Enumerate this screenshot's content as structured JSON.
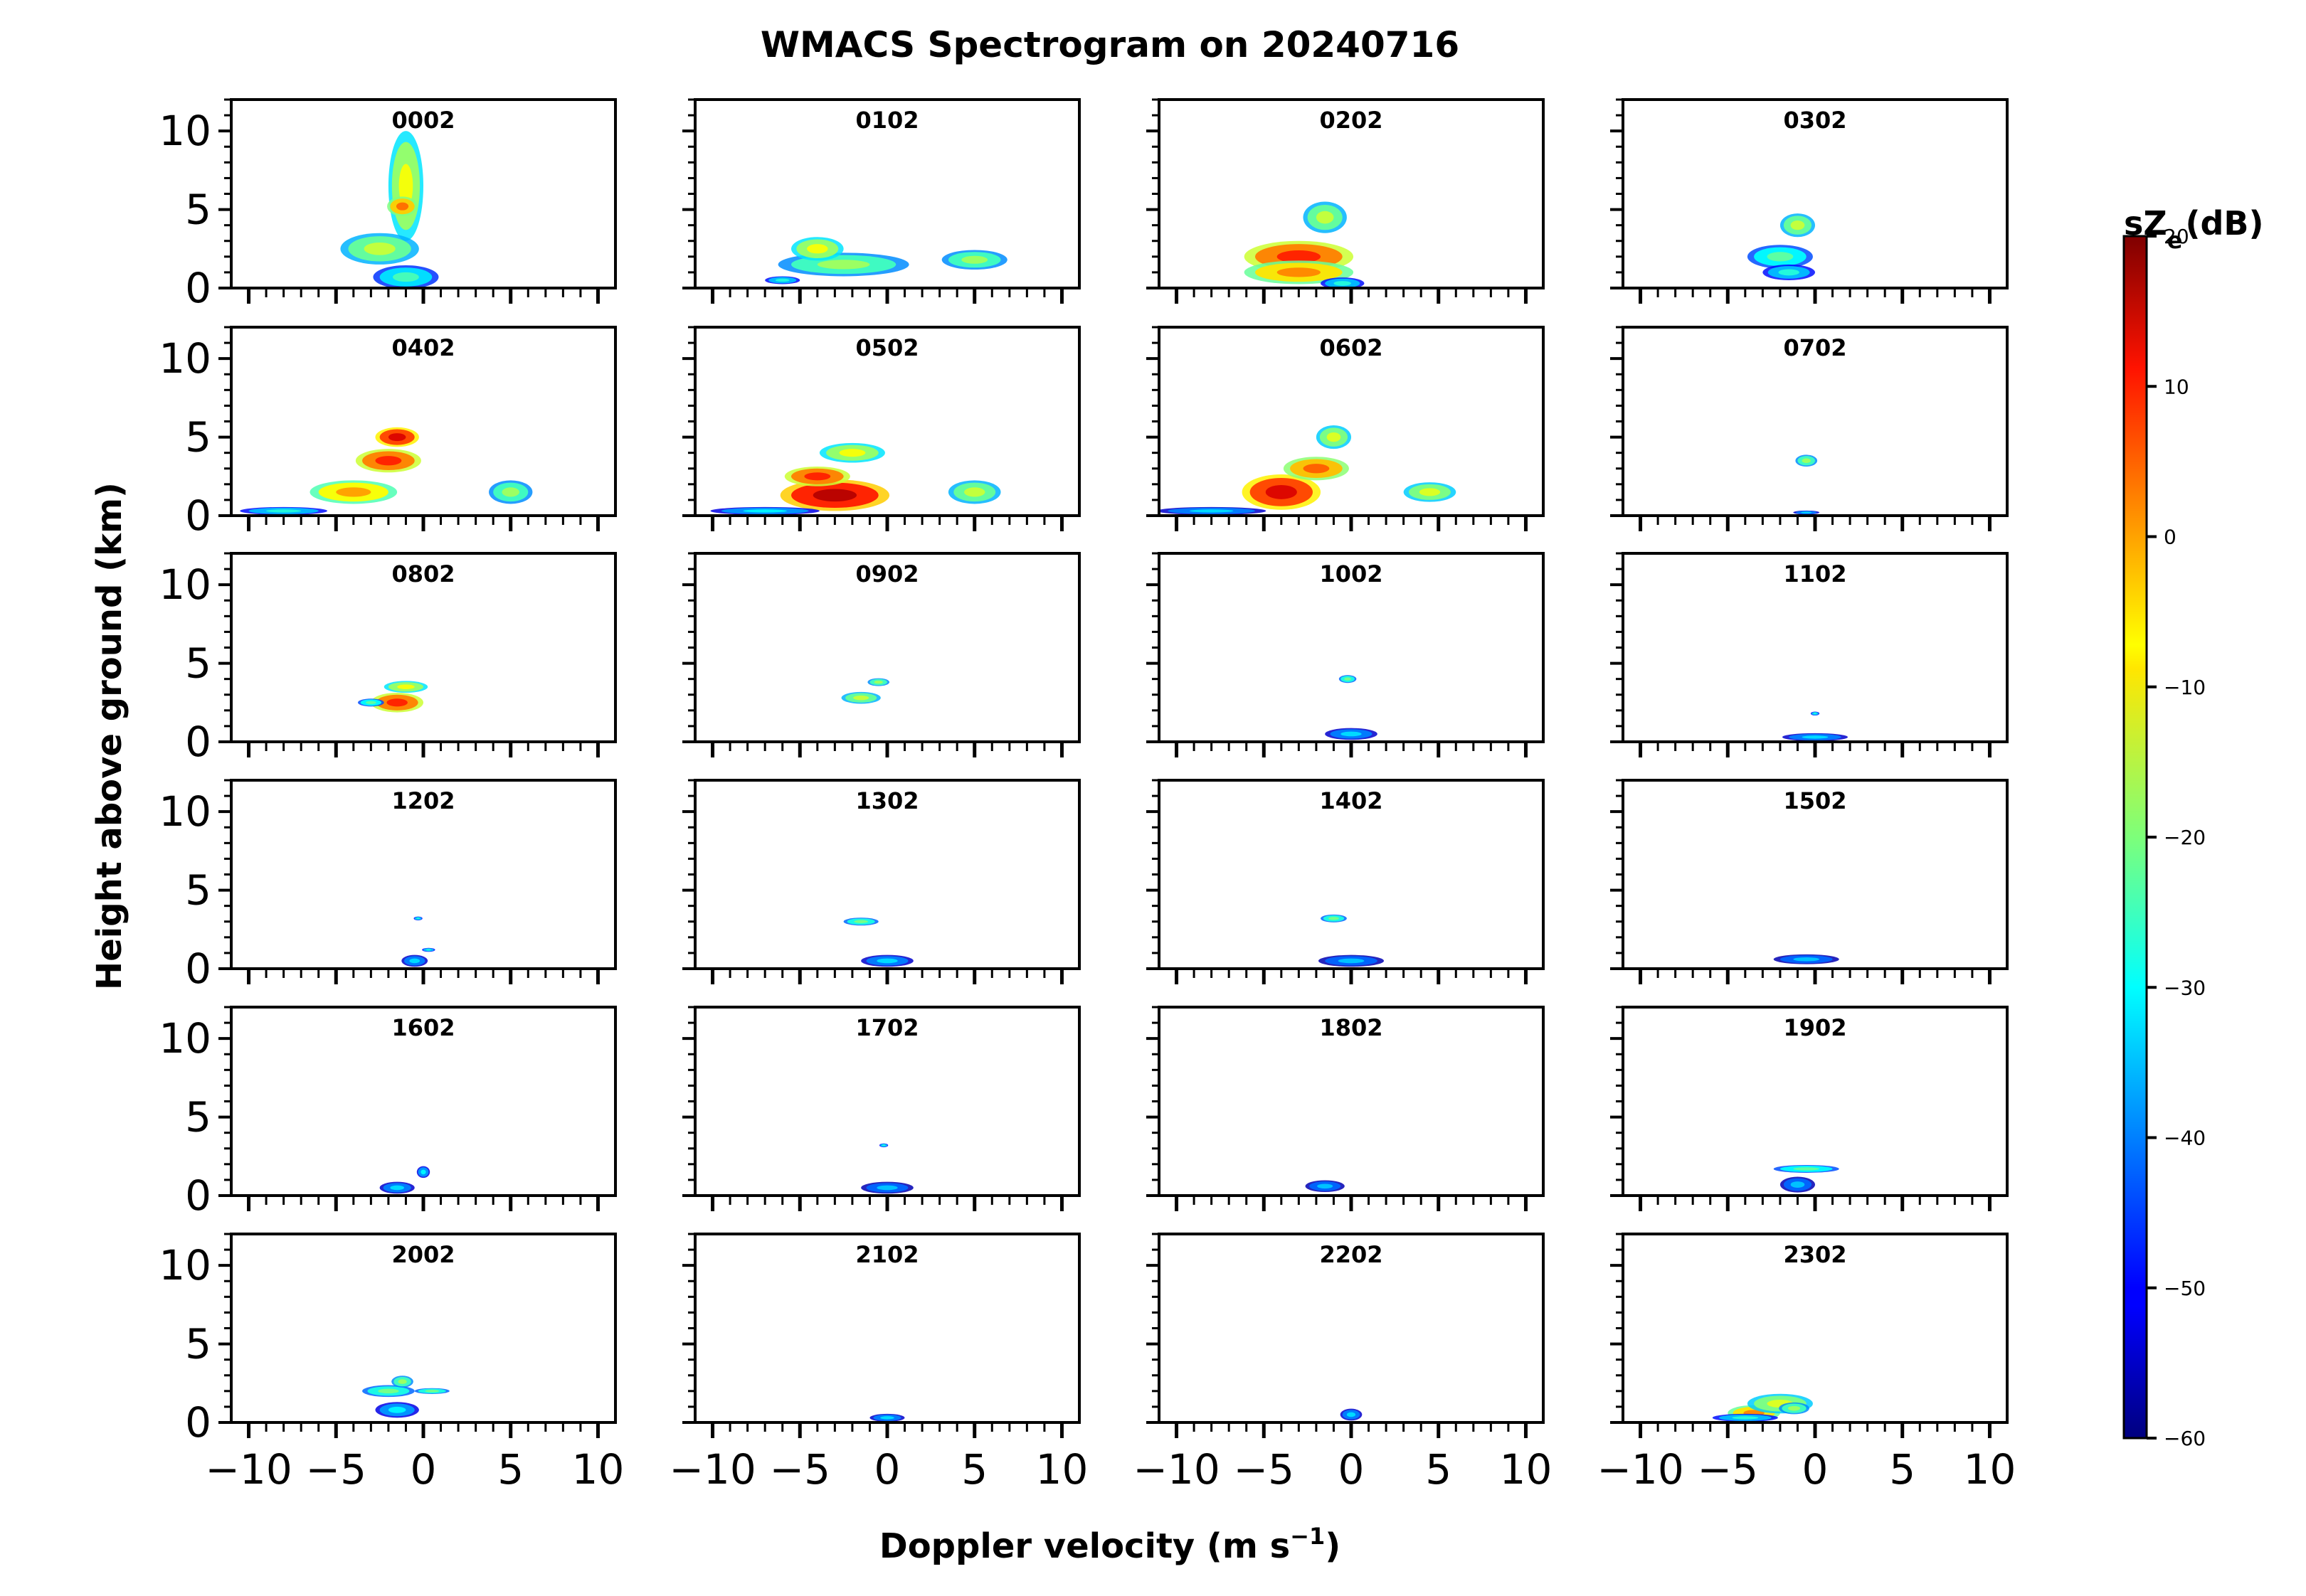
{
  "chart_data": {
    "type": "heatmap",
    "title": "WMACS Spectrogram on 20240716",
    "xlabel": "Doppler velocity (m s",
    "xlabel_sup": "−1",
    "xlabel_end": ")",
    "ylabel": "Height above ground (km)",
    "xlim": [
      -11,
      11
    ],
    "ylim": [
      0,
      12
    ],
    "xticks": [
      -10,
      -5,
      0,
      5,
      10
    ],
    "xtick_labels": [
      "−10",
      "−5",
      "0",
      "5",
      "10"
    ],
    "yticks": [
      0,
      5,
      10
    ],
    "ytick_labels": [
      "0",
      "5",
      "10"
    ],
    "grid": false,
    "colorbar": {
      "label": "sZ_e (dB)",
      "label_main": "sZ",
      "label_sub": "e",
      "label_unit": "(dB)",
      "range": [
        -60,
        20
      ],
      "ticks": [
        -60,
        -50,
        -40,
        -30,
        -20,
        -10,
        0,
        10,
        20
      ],
      "tick_labels": [
        "−60",
        "−50",
        "−40",
        "−30",
        "−20",
        "−10",
        "0",
        "10",
        "20"
      ],
      "colormap": "jet"
    },
    "panels": [
      {
        "label": "0002",
        "blobs": [
          [
            -1,
            6.5,
            0.8,
            2.8,
            -18
          ],
          [
            -2.5,
            2.5,
            1.8,
            0.8,
            -22
          ],
          [
            -1,
            0.7,
            1.5,
            0.6,
            -32
          ],
          [
            -1.2,
            5.2,
            0.7,
            0.5,
            -6
          ]
        ]
      },
      {
        "label": "0102",
        "blobs": [
          [
            -2.5,
            1.5,
            3,
            0.6,
            -25
          ],
          [
            -4,
            2.5,
            1.2,
            0.6,
            -18
          ],
          [
            5,
            1.8,
            1.5,
            0.5,
            -25
          ],
          [
            -6,
            0.5,
            0.8,
            0.2,
            -35
          ]
        ]
      },
      {
        "label": "0202",
        "blobs": [
          [
            -3,
            2,
            2.5,
            0.8,
            0
          ],
          [
            -3,
            1,
            2.5,
            0.6,
            -8
          ],
          [
            -1.5,
            4.5,
            1,
            0.8,
            -22
          ],
          [
            -0.5,
            0.3,
            1,
            0.3,
            -35
          ]
        ]
      },
      {
        "label": "0302",
        "blobs": [
          [
            -2,
            2,
            1.5,
            0.6,
            -30
          ],
          [
            -1,
            4,
            0.8,
            0.6,
            -22
          ],
          [
            -1.5,
            1,
            1.2,
            0.4,
            -35
          ]
        ]
      },
      {
        "label": "0402",
        "blobs": [
          [
            -4,
            1.5,
            2,
            0.6,
            -10
          ],
          [
            -2,
            3.5,
            1.5,
            0.6,
            0
          ],
          [
            -1.5,
            5,
            1,
            0.5,
            5
          ],
          [
            5,
            1.5,
            1,
            0.6,
            -25
          ],
          [
            -8,
            0.3,
            2,
            0.2,
            -35
          ]
        ]
      },
      {
        "label": "0502",
        "blobs": [
          [
            -3,
            1.3,
            2.5,
            0.8,
            8
          ],
          [
            -4,
            2.5,
            1.5,
            0.5,
            0
          ],
          [
            -2,
            4,
            1.5,
            0.5,
            -18
          ],
          [
            5,
            1.5,
            1.2,
            0.6,
            -22
          ],
          [
            -7,
            0.3,
            2.5,
            0.2,
            -38
          ]
        ]
      },
      {
        "label": "0602",
        "blobs": [
          [
            -4,
            1.5,
            1.8,
            0.9,
            5
          ],
          [
            -2,
            3,
            1.5,
            0.6,
            -5
          ],
          [
            -1,
            5,
            0.8,
            0.6,
            -20
          ],
          [
            4.5,
            1.5,
            1.2,
            0.5,
            -20
          ],
          [
            -8,
            0.3,
            2.5,
            0.2,
            -40
          ]
        ]
      },
      {
        "label": "0702",
        "blobs": [
          [
            -0.5,
            3.5,
            0.5,
            0.3,
            -25
          ],
          [
            -0.5,
            0.2,
            0.6,
            0.1,
            -40
          ]
        ]
      },
      {
        "label": "0802",
        "blobs": [
          [
            -1.5,
            2.5,
            1.2,
            0.5,
            0
          ],
          [
            -1,
            3.5,
            1,
            0.3,
            -18
          ],
          [
            -3,
            2.5,
            0.6,
            0.2,
            -30
          ]
        ]
      },
      {
        "label": "0902",
        "blobs": [
          [
            -1.5,
            2.8,
            0.9,
            0.3,
            -22
          ],
          [
            -0.5,
            3.8,
            0.5,
            0.2,
            -25
          ]
        ]
      },
      {
        "label": "1002",
        "blobs": [
          [
            0,
            0.5,
            1.2,
            0.3,
            -40
          ],
          [
            -0.2,
            4,
            0.4,
            0.2,
            -28
          ]
        ]
      },
      {
        "label": "1102",
        "blobs": [
          [
            0,
            0.3,
            1.5,
            0.2,
            -40
          ],
          [
            0,
            1.8,
            0.2,
            0.1,
            -35
          ]
        ]
      },
      {
        "label": "1202",
        "blobs": [
          [
            -0.5,
            0.5,
            0.6,
            0.3,
            -40
          ],
          [
            0.3,
            1.2,
            0.3,
            0.1,
            -35
          ],
          [
            -0.3,
            3.2,
            0.2,
            0.1,
            -35
          ]
        ]
      },
      {
        "label": "1302",
        "blobs": [
          [
            -1.5,
            3,
            0.8,
            0.2,
            -28
          ],
          [
            0,
            0.5,
            1.2,
            0.3,
            -40
          ]
        ]
      },
      {
        "label": "1402",
        "blobs": [
          [
            -1,
            3.2,
            0.6,
            0.2,
            -28
          ],
          [
            0,
            0.5,
            1.5,
            0.3,
            -42
          ]
        ]
      },
      {
        "label": "1502",
        "blobs": [
          [
            -0.5,
            0.6,
            1.5,
            0.25,
            -42
          ]
        ]
      },
      {
        "label": "1602",
        "blobs": [
          [
            -1.5,
            0.5,
            0.8,
            0.3,
            -40
          ],
          [
            0,
            1.5,
            0.3,
            0.3,
            -38
          ]
        ]
      },
      {
        "label": "1702",
        "blobs": [
          [
            0,
            0.5,
            1.2,
            0.3,
            -42
          ],
          [
            -0.2,
            3.2,
            0.2,
            0.1,
            -35
          ]
        ]
      },
      {
        "label": "1802",
        "blobs": [
          [
            -1.5,
            0.6,
            0.9,
            0.3,
            -42
          ]
        ]
      },
      {
        "label": "1902",
        "blobs": [
          [
            -0.5,
            1.7,
            1.5,
            0.2,
            -30
          ],
          [
            -1,
            0.7,
            0.8,
            0.4,
            -42
          ]
        ]
      },
      {
        "label": "2002",
        "blobs": [
          [
            -2,
            2,
            1.2,
            0.3,
            -28
          ],
          [
            -1.2,
            2.6,
            0.5,
            0.3,
            -25
          ],
          [
            -1.5,
            0.8,
            1,
            0.4,
            -38
          ],
          [
            0.5,
            2,
            0.8,
            0.15,
            -28
          ]
        ]
      },
      {
        "label": "2102",
        "blobs": [
          [
            0,
            0.3,
            0.8,
            0.2,
            -40
          ]
        ]
      },
      {
        "label": "2202",
        "blobs": [
          [
            0,
            0.5,
            0.5,
            0.3,
            -40
          ]
        ]
      },
      {
        "label": "2302",
        "blobs": [
          [
            -3.5,
            0.6,
            1.2,
            0.4,
            -8
          ],
          [
            -2,
            1.2,
            1.5,
            0.5,
            -20
          ],
          [
            -4,
            0.3,
            1.5,
            0.2,
            -35
          ],
          [
            -1.2,
            0.9,
            0.7,
            0.3,
            -25
          ]
        ]
      }
    ]
  }
}
